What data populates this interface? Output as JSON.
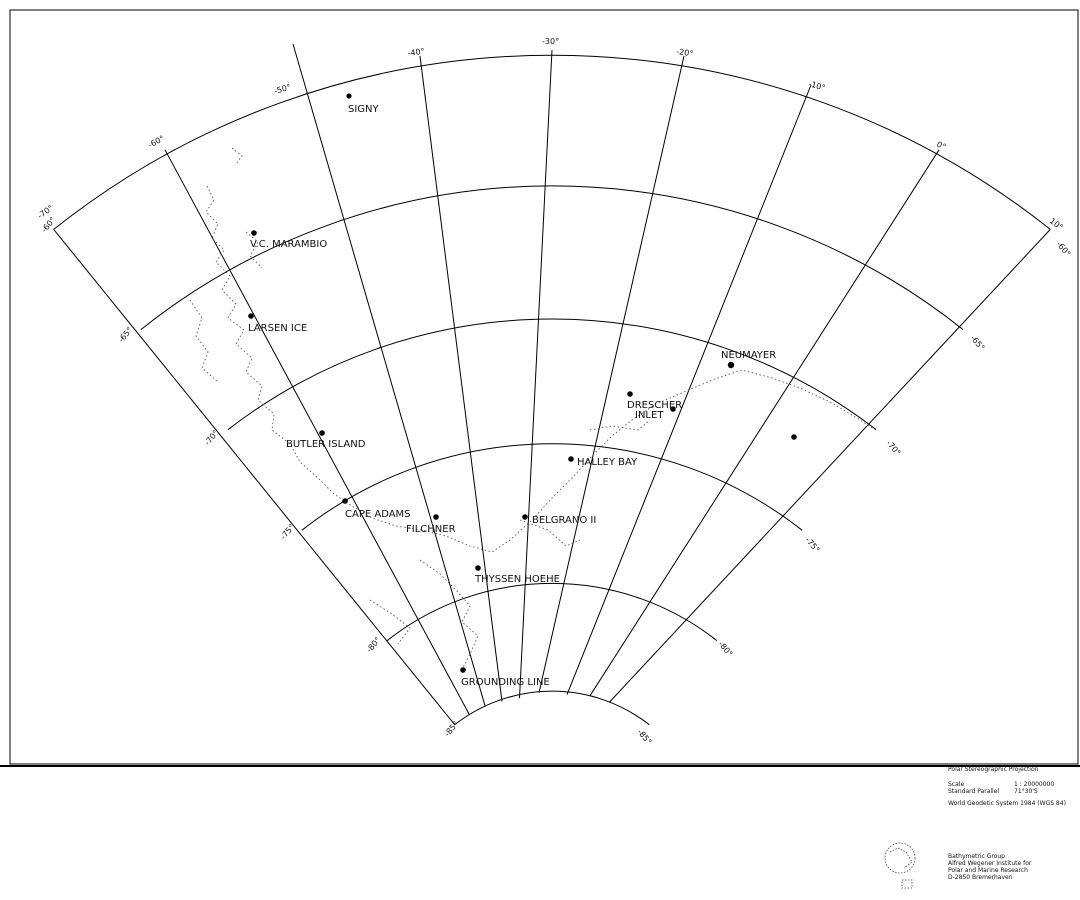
{
  "map": {
    "longitude_labels": {
      "m60": "-60°",
      "m50": "-50°",
      "m40": "-40°",
      "m30": "-30°",
      "m20": "-20°",
      "m10": "-10°",
      "zero": "0°",
      "p10": "10°"
    },
    "latitude_labels_left": {
      "m60": "-60°",
      "m65": "-65°",
      "m70": "-70°",
      "m75": "-75°",
      "m80": "-80°",
      "m85": "-85°"
    },
    "latitude_labels_right": {
      "m60": "-60°",
      "m65": "-65°",
      "m70": "-70°",
      "m75": "-75°",
      "m80": "-80°",
      "m85": "-85°"
    },
    "corner_left_top": "-70°",
    "stations": {
      "signy": "SIGNY",
      "marambio": "V.C. MARAMBIO",
      "larsen": "LARSEN ICE",
      "butler": "BUTLER ISLAND",
      "cape_adams": "CAPE ADAMS",
      "filchner": "FILCHNER",
      "belgrano": "BELGRANO II",
      "thyssen": "THYSSEN HOEHE",
      "grounding": "GROUNDING LINE",
      "halley": "HALLEY BAY",
      "drescher_1": "DRESCHER",
      "drescher_2": "INLET",
      "neumayer": "NEUMAYER"
    }
  },
  "legend": {
    "projection": "Polar Stereographic Projection",
    "scale_label": "Scale",
    "scale_value": "1 : 20000000",
    "standard_parallel_label": "Standard Parallel",
    "standard_parallel_value": "71°30'S",
    "datum": "World Geodetic System 1984  (WGS 84)",
    "credit_line1": "Bathymetric Group",
    "credit_line2": "Alfred Wegener Institute for",
    "credit_line3": "Polar and Marine Research",
    "credit_line4": "D-2850 Bremerhaven"
  }
}
